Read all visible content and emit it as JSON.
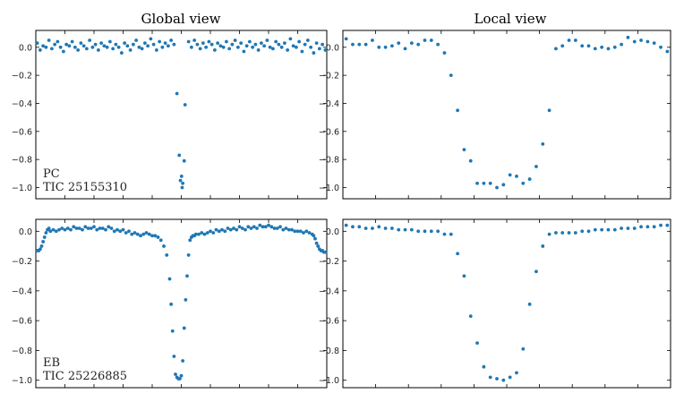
{
  "figure": {
    "column_titles": [
      "Global view",
      "Local view"
    ]
  },
  "chart_data": [
    {
      "type": "scatter",
      "panel": "top-left",
      "title": "Global view",
      "annotation": [
        "PC",
        "TIC 25155310"
      ],
      "ylim": [
        -1.08,
        0.12
      ],
      "xlim": [
        0,
        1
      ],
      "yticks": [
        0.0,
        -0.2,
        -0.4,
        -0.6,
        -0.8,
        -1.0
      ],
      "ytick_labels": [
        "0.0",
        "−0.2",
        "−0.4",
        "−0.6",
        "−0.8",
        "−1.0"
      ],
      "x": [
        0.005,
        0.015,
        0.025,
        0.035,
        0.045,
        0.055,
        0.065,
        0.075,
        0.085,
        0.095,
        0.105,
        0.115,
        0.125,
        0.135,
        0.145,
        0.155,
        0.165,
        0.175,
        0.185,
        0.195,
        0.205,
        0.215,
        0.225,
        0.235,
        0.245,
        0.255,
        0.265,
        0.275,
        0.285,
        0.295,
        0.305,
        0.315,
        0.325,
        0.335,
        0.345,
        0.355,
        0.365,
        0.375,
        0.385,
        0.395,
        0.405,
        0.415,
        0.425,
        0.435,
        0.445,
        0.455,
        0.465,
        0.475,
        0.485,
        0.493,
        0.497,
        0.501,
        0.503,
        0.505,
        0.51,
        0.513,
        0.525,
        0.535,
        0.545,
        0.555,
        0.565,
        0.575,
        0.585,
        0.595,
        0.605,
        0.615,
        0.625,
        0.635,
        0.645,
        0.655,
        0.665,
        0.675,
        0.685,
        0.695,
        0.705,
        0.715,
        0.725,
        0.735,
        0.745,
        0.755,
        0.765,
        0.775,
        0.785,
        0.795,
        0.805,
        0.815,
        0.825,
        0.835,
        0.845,
        0.855,
        0.865,
        0.875,
        0.885,
        0.895,
        0.905,
        0.915,
        0.925,
        0.935,
        0.945,
        0.955,
        0.965,
        0.975,
        0.985,
        0.995
      ],
      "y": [
        0.03,
        -0.02,
        0.01,
        0.0,
        0.05,
        -0.01,
        0.02,
        0.04,
        0.0,
        -0.03,
        0.02,
        0.01,
        0.04,
        0.0,
        -0.02,
        0.03,
        0.01,
        -0.01,
        0.05,
        0.0,
        0.02,
        -0.02,
        0.03,
        0.01,
        0.0,
        0.04,
        -0.01,
        0.02,
        0.0,
        -0.04,
        0.03,
        0.01,
        -0.02,
        0.02,
        0.05,
        0.0,
        -0.01,
        0.03,
        0.01,
        0.06,
        0.02,
        -0.02,
        0.04,
        0.0,
        0.03,
        0.01,
        0.05,
        0.02,
        -0.33,
        -0.77,
        -0.95,
        -0.92,
        -1.0,
        -0.97,
        -0.81,
        -0.41,
        0.04,
        0.0,
        0.05,
        0.02,
        -0.01,
        0.03,
        0.0,
        0.04,
        0.02,
        -0.02,
        0.03,
        0.01,
        0.0,
        0.04,
        -0.01,
        0.02,
        0.05,
        0.0,
        0.03,
        -0.03,
        0.01,
        0.04,
        0.0,
        0.02,
        -0.02,
        0.03,
        0.01,
        0.05,
        0.0,
        -0.01,
        0.04,
        0.02,
        0.0,
        0.03,
        -0.02,
        0.06,
        0.01,
        0.0,
        0.04,
        -0.03,
        0.02,
        0.05,
        0.0,
        -0.04,
        0.03,
        -0.01,
        0.02,
        -0.02
      ]
    },
    {
      "type": "scatter",
      "panel": "top-right",
      "title": "Local view",
      "ylim": [
        -1.08,
        0.12
      ],
      "xlim": [
        0,
        1
      ],
      "yticks": [
        0.0,
        -0.2,
        -0.4,
        -0.6,
        -0.8,
        -1.0
      ],
      "ytick_labels": [
        "0.0",
        "−0.2",
        "−0.4",
        "−0.6",
        "−0.8",
        "−1.0"
      ],
      "x": [
        0.01,
        0.03,
        0.05,
        0.07,
        0.09,
        0.11,
        0.13,
        0.15,
        0.17,
        0.19,
        0.21,
        0.23,
        0.25,
        0.27,
        0.29,
        0.31,
        0.33,
        0.35,
        0.37,
        0.39,
        0.41,
        0.43,
        0.45,
        0.47,
        0.49,
        0.51,
        0.53,
        0.55,
        0.57,
        0.59,
        0.61,
        0.63,
        0.65,
        0.67,
        0.69,
        0.71,
        0.73,
        0.75,
        0.77,
        0.79,
        0.81,
        0.83,
        0.85,
        0.87,
        0.89,
        0.91,
        0.93,
        0.95,
        0.97,
        0.99
      ],
      "y": [
        0.06,
        0.02,
        0.02,
        0.02,
        0.05,
        0.0,
        0.0,
        0.01,
        0.03,
        -0.01,
        0.03,
        0.02,
        0.05,
        0.05,
        0.02,
        -0.04,
        -0.2,
        -0.45,
        -0.73,
        -0.81,
        -0.97,
        -0.97,
        -0.97,
        -1.0,
        -0.98,
        -0.91,
        -0.92,
        -0.97,
        -0.94,
        -0.85,
        -0.69,
        -0.45,
        -0.01,
        0.01,
        0.05,
        0.05,
        0.01,
        0.01,
        -0.01,
        0.0,
        -0.01,
        0.0,
        0.02,
        0.07,
        0.04,
        0.05,
        0.04,
        0.03,
        0.0,
        -0.03
      ]
    },
    {
      "type": "scatter",
      "panel": "bottom-left",
      "annotation": [
        "EB",
        "TIC 25226885"
      ],
      "ylim": [
        -1.05,
        0.08
      ],
      "xlim": [
        0,
        1
      ],
      "yticks": [
        0.0,
        -0.2,
        -0.4,
        -0.6,
        -0.8,
        -1.0
      ],
      "ytick_labels": [
        "0.0",
        "−0.2",
        "−0.4",
        "−0.6",
        "−0.8",
        "−1.0"
      ],
      "x": [
        0.005,
        0.01,
        0.015,
        0.02,
        0.025,
        0.03,
        0.035,
        0.04,
        0.045,
        0.05,
        0.06,
        0.07,
        0.08,
        0.09,
        0.1,
        0.11,
        0.12,
        0.13,
        0.14,
        0.15,
        0.16,
        0.17,
        0.18,
        0.19,
        0.2,
        0.21,
        0.22,
        0.23,
        0.24,
        0.25,
        0.26,
        0.27,
        0.28,
        0.29,
        0.3,
        0.31,
        0.32,
        0.33,
        0.34,
        0.35,
        0.36,
        0.37,
        0.38,
        0.39,
        0.4,
        0.41,
        0.42,
        0.43,
        0.44,
        0.45,
        0.46,
        0.465,
        0.47,
        0.475,
        0.48,
        0.485,
        0.49,
        0.495,
        0.5,
        0.505,
        0.51,
        0.515,
        0.52,
        0.525,
        0.53,
        0.535,
        0.54,
        0.545,
        0.55,
        0.56,
        0.57,
        0.58,
        0.59,
        0.6,
        0.61,
        0.62,
        0.63,
        0.64,
        0.65,
        0.66,
        0.67,
        0.68,
        0.69,
        0.7,
        0.71,
        0.72,
        0.73,
        0.74,
        0.75,
        0.76,
        0.77,
        0.78,
        0.79,
        0.8,
        0.81,
        0.82,
        0.83,
        0.84,
        0.85,
        0.86,
        0.87,
        0.88,
        0.89,
        0.9,
        0.91,
        0.92,
        0.93,
        0.94,
        0.95,
        0.955,
        0.96,
        0.965,
        0.97,
        0.975,
        0.98,
        0.985,
        0.99,
        0.995
      ],
      "y": [
        -0.13,
        -0.13,
        -0.12,
        -0.1,
        -0.07,
        -0.04,
        -0.01,
        0.01,
        0.02,
        0.0,
        0.01,
        0.0,
        0.01,
        0.02,
        0.01,
        0.02,
        0.01,
        0.03,
        0.02,
        0.02,
        0.01,
        0.03,
        0.02,
        0.02,
        0.03,
        0.01,
        0.02,
        0.02,
        0.01,
        0.03,
        0.02,
        0.0,
        0.01,
        0.0,
        0.01,
        -0.01,
        0.0,
        -0.02,
        -0.01,
        -0.02,
        -0.03,
        -0.02,
        -0.01,
        -0.02,
        -0.03,
        -0.03,
        -0.04,
        -0.06,
        -0.1,
        -0.16,
        -0.32,
        -0.49,
        -0.67,
        -0.84,
        -0.96,
        -0.98,
        -0.99,
        -0.99,
        -0.97,
        -0.87,
        -0.65,
        -0.46,
        -0.3,
        -0.16,
        -0.06,
        -0.04,
        -0.03,
        -0.03,
        -0.02,
        -0.02,
        -0.01,
        -0.02,
        -0.01,
        0.0,
        -0.01,
        0.01,
        0.0,
        0.01,
        0.0,
        0.02,
        0.01,
        0.02,
        0.01,
        0.03,
        0.02,
        0.01,
        0.03,
        0.02,
        0.03,
        0.02,
        0.04,
        0.03,
        0.03,
        0.04,
        0.03,
        0.02,
        0.02,
        0.03,
        0.01,
        0.02,
        0.01,
        0.01,
        0.0,
        0.0,
        0.0,
        -0.01,
        0.0,
        -0.01,
        -0.02,
        -0.03,
        -0.05,
        -0.08,
        -0.1,
        -0.12,
        -0.13,
        -0.13,
        -0.14,
        -0.14
      ]
    },
    {
      "type": "scatter",
      "panel": "bottom-right",
      "ylim": [
        -1.05,
        0.08
      ],
      "xlim": [
        0,
        1
      ],
      "yticks": [
        0.0,
        -0.2,
        -0.4,
        -0.6,
        -0.8,
        -1.0
      ],
      "ytick_labels": [
        "0.0",
        "−0.2",
        "−0.4",
        "−0.6",
        "−0.8",
        "−1.0"
      ],
      "x": [
        0.01,
        0.03,
        0.05,
        0.07,
        0.09,
        0.11,
        0.13,
        0.15,
        0.17,
        0.19,
        0.21,
        0.23,
        0.25,
        0.27,
        0.29,
        0.31,
        0.33,
        0.35,
        0.37,
        0.39,
        0.41,
        0.43,
        0.45,
        0.47,
        0.49,
        0.51,
        0.53,
        0.55,
        0.57,
        0.59,
        0.61,
        0.63,
        0.65,
        0.67,
        0.69,
        0.71,
        0.73,
        0.75,
        0.77,
        0.79,
        0.81,
        0.83,
        0.85,
        0.87,
        0.89,
        0.91,
        0.93,
        0.95,
        0.97,
        0.99
      ],
      "y": [
        0.04,
        0.03,
        0.03,
        0.02,
        0.02,
        0.03,
        0.02,
        0.02,
        0.01,
        0.01,
        0.01,
        0.0,
        0.0,
        0.0,
        0.0,
        -0.02,
        -0.02,
        -0.15,
        -0.3,
        -0.57,
        -0.75,
        -0.91,
        -0.98,
        -0.99,
        -1.0,
        -0.98,
        -0.95,
        -0.79,
        -0.49,
        -0.27,
        -0.1,
        -0.02,
        -0.01,
        -0.01,
        -0.01,
        -0.01,
        0.0,
        0.0,
        0.01,
        0.01,
        0.01,
        0.01,
        0.02,
        0.02,
        0.02,
        0.03,
        0.03,
        0.03,
        0.04,
        0.04
      ]
    }
  ]
}
